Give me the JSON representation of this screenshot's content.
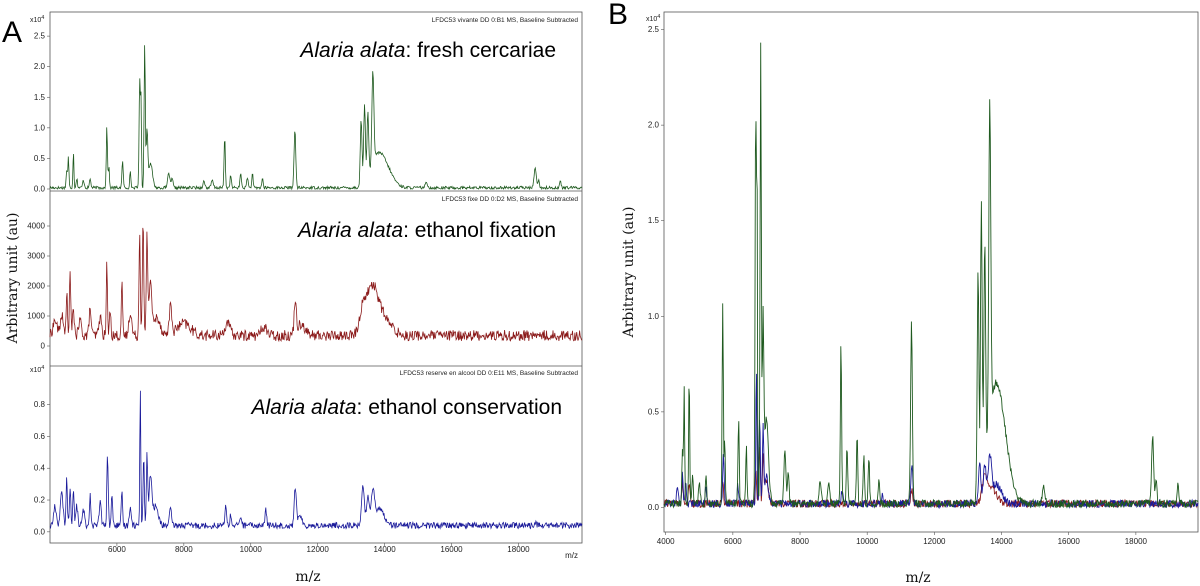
{
  "figure": {
    "panel_a_letter": "A",
    "panel_b_letter": "B"
  },
  "chart_data": [
    {
      "type": "line",
      "panel": "A",
      "subplot": 1,
      "header": "LFDC53 vivante DD 0:B1 MS, Baseline Subtracted",
      "annotation_species": "Alaria alata",
      "annotation_rest": ": fresh cercariae",
      "color": "#1f5a1f",
      "exponent_label": "x10",
      "exponent_power": "4",
      "xlim": [
        4000,
        19900
      ],
      "ylim": [
        0,
        2.6
      ],
      "yticks": [
        "0.0",
        "0.5",
        "1.0",
        "1.5",
        "2.0",
        "2.5"
      ],
      "ytick_values": [
        0,
        0.5,
        1.0,
        1.5,
        2.0,
        2.5
      ],
      "noise": 0.025,
      "baseline": 0.02,
      "peaks": [
        [
          4500,
          0.3,
          18
        ],
        [
          4550,
          0.5,
          15
        ],
        [
          4700,
          0.6,
          15
        ],
        [
          4800,
          0.15,
          20
        ],
        [
          5000,
          0.12,
          25
        ],
        [
          5200,
          0.15,
          20
        ],
        [
          5700,
          1.0,
          18
        ],
        [
          5760,
          0.35,
          15
        ],
        [
          6170,
          0.45,
          18
        ],
        [
          6400,
          0.25,
          18
        ],
        [
          6680,
          1.8,
          18
        ],
        [
          6720,
          1.45,
          14
        ],
        [
          6830,
          2.35,
          18
        ],
        [
          6900,
          0.9,
          22
        ],
        [
          7000,
          0.4,
          60
        ],
        [
          7550,
          0.25,
          30
        ],
        [
          7650,
          0.15,
          25
        ],
        [
          8600,
          0.1,
          30
        ],
        [
          8850,
          0.12,
          30
        ],
        [
          9220,
          0.85,
          18
        ],
        [
          9400,
          0.2,
          20
        ],
        [
          9700,
          0.25,
          20
        ],
        [
          9900,
          0.18,
          20
        ],
        [
          10050,
          0.22,
          20
        ],
        [
          10350,
          0.15,
          20
        ],
        [
          11320,
          0.95,
          25
        ],
        [
          13300,
          1.1,
          25
        ],
        [
          13400,
          1.3,
          25
        ],
        [
          13500,
          1.1,
          25
        ],
        [
          13650,
          1.55,
          30
        ],
        [
          13800,
          0.5,
          200
        ],
        [
          14100,
          0.2,
          200
        ],
        [
          15250,
          0.07,
          40
        ],
        [
          18500,
          0.35,
          30
        ],
        [
          18600,
          0.12,
          25
        ],
        [
          19250,
          0.12,
          20
        ]
      ]
    },
    {
      "type": "line",
      "panel": "A",
      "subplot": 2,
      "header": "LFDC53 fixe DD 0:D2 MS, Baseline Subtracted",
      "annotation_species": "Alaria alata",
      "annotation_rest": ": ethanol fixation",
      "color": "#8b1a1a",
      "exponent_label": "",
      "exponent_power": "",
      "xlim": [
        4000,
        19900
      ],
      "ylim": [
        -200,
        4700
      ],
      "yticks": [
        "0",
        "1000",
        "2000",
        "3000",
        "4000"
      ],
      "ytick_values": [
        0,
        1000,
        2000,
        3000,
        4000
      ],
      "noise": 180,
      "baseline": 350,
      "peaks": [
        [
          4150,
          500,
          60
        ],
        [
          4350,
          700,
          40
        ],
        [
          4500,
          1500,
          20
        ],
        [
          4600,
          2000,
          20
        ],
        [
          4700,
          800,
          30
        ],
        [
          4900,
          500,
          40
        ],
        [
          5200,
          900,
          30
        ],
        [
          5500,
          600,
          40
        ],
        [
          5700,
          2400,
          18
        ],
        [
          5800,
          900,
          20
        ],
        [
          6150,
          1700,
          18
        ],
        [
          6400,
          800,
          40
        ],
        [
          6680,
          3500,
          20
        ],
        [
          6780,
          3900,
          20
        ],
        [
          6900,
          3300,
          22
        ],
        [
          7000,
          1800,
          40
        ],
        [
          7200,
          600,
          100
        ],
        [
          7600,
          900,
          40
        ],
        [
          8000,
          400,
          200
        ],
        [
          9300,
          400,
          80
        ],
        [
          10400,
          300,
          80
        ],
        [
          11330,
          1100,
          30
        ],
        [
          11500,
          400,
          120
        ],
        [
          13350,
          800,
          100
        ],
        [
          13600,
          1250,
          150
        ],
        [
          13800,
          700,
          180
        ],
        [
          14100,
          300,
          200
        ]
      ]
    },
    {
      "type": "line",
      "panel": "A",
      "subplot": 3,
      "header": "LFDC53 reserve en alcool DD 0:E11 MS, Baseline Subtracted",
      "annotation_species": "Alaria alata",
      "annotation_rest": ": ethanol conservation",
      "color": "#1a1a9a",
      "exponent_label": "x10",
      "exponent_power": "4",
      "xlim": [
        4000,
        19900
      ],
      "ylim": [
        -0.02,
        0.98
      ],
      "yticks": [
        "0.0",
        "0.2",
        "0.4",
        "0.6",
        "0.8"
      ],
      "ytick_values": [
        0,
        0.2,
        0.4,
        0.6,
        0.8
      ],
      "noise": 0.02,
      "baseline": 0.04,
      "peaks": [
        [
          4150,
          0.12,
          40
        ],
        [
          4350,
          0.2,
          40
        ],
        [
          4500,
          0.3,
          20
        ],
        [
          4600,
          0.25,
          20
        ],
        [
          4700,
          0.22,
          20
        ],
        [
          4800,
          0.12,
          30
        ],
        [
          5000,
          0.1,
          30
        ],
        [
          5200,
          0.2,
          20
        ],
        [
          5500,
          0.15,
          30
        ],
        [
          5720,
          0.45,
          20
        ],
        [
          5850,
          0.2,
          20
        ],
        [
          6150,
          0.2,
          20
        ],
        [
          6400,
          0.12,
          30
        ],
        [
          6700,
          0.88,
          15
        ],
        [
          6800,
          0.45,
          18
        ],
        [
          6900,
          0.45,
          20
        ],
        [
          7000,
          0.3,
          40
        ],
        [
          7150,
          0.12,
          80
        ],
        [
          7600,
          0.1,
          30
        ],
        [
          9250,
          0.12,
          25
        ],
        [
          9400,
          0.06,
          25
        ],
        [
          9700,
          0.06,
          25
        ],
        [
          10450,
          0.1,
          25
        ],
        [
          11330,
          0.22,
          30
        ],
        [
          11450,
          0.05,
          80
        ],
        [
          13350,
          0.25,
          40
        ],
        [
          13500,
          0.18,
          40
        ],
        [
          13650,
          0.2,
          50
        ],
        [
          13850,
          0.1,
          150
        ],
        [
          18500,
          0.015,
          40
        ]
      ]
    },
    {
      "type": "line",
      "panel": "B",
      "xlabel": "m/z",
      "ylabel": "Arbitrary unit (au)",
      "exponent_label": "x10",
      "exponent_power": "4",
      "xlim": [
        3950,
        19850
      ],
      "ylim": [
        -0.05,
        2.55
      ],
      "xticks": [
        "4000",
        "6000",
        "8000",
        "10000",
        "12000",
        "14000",
        "16000",
        "18000"
      ],
      "xtick_values": [
        4000,
        6000,
        8000,
        10000,
        12000,
        14000,
        16000,
        18000
      ],
      "yticks": [
        "0.0",
        "0.5",
        "1.0",
        "1.5",
        "2.0",
        "2.5"
      ],
      "ytick_values": [
        0,
        0.5,
        1.0,
        1.5,
        2.0,
        2.5
      ],
      "series": [
        {
          "color": "#8b1a1a",
          "noise": 0.02,
          "baseline": 0.02,
          "peaks": [
            [
              4500,
              0.12,
              20
            ],
            [
              4700,
              0.12,
              20
            ],
            [
              5700,
              0.12,
              20
            ],
            [
              6680,
              0.2,
              20
            ],
            [
              6800,
              0.3,
              20
            ],
            [
              6900,
              0.25,
              20
            ],
            [
              7000,
              0.12,
              60
            ],
            [
              11330,
              0.08,
              30
            ],
            [
              13500,
              0.12,
              80
            ],
            [
              13700,
              0.08,
              150
            ]
          ]
        },
        {
          "color": "#1a1a9a",
          "noise": 0.02,
          "baseline": 0.02,
          "peaks": [
            [
              4350,
              0.08,
              30
            ],
            [
              4500,
              0.15,
              20
            ],
            [
              4600,
              0.12,
              20
            ],
            [
              5200,
              0.1,
              20
            ],
            [
              5720,
              0.25,
              20
            ],
            [
              6150,
              0.1,
              20
            ],
            [
              6700,
              0.75,
              15
            ],
            [
              6800,
              0.45,
              18
            ],
            [
              6900,
              0.4,
              20
            ],
            [
              7000,
              0.15,
              50
            ],
            [
              9250,
              0.06,
              25
            ],
            [
              10450,
              0.05,
              25
            ],
            [
              11330,
              0.2,
              30
            ],
            [
              13350,
              0.2,
              40
            ],
            [
              13500,
              0.2,
              40
            ],
            [
              13650,
              0.22,
              50
            ],
            [
              13850,
              0.1,
              150
            ]
          ]
        },
        {
          "color": "#1f5a1f",
          "noise": 0.02,
          "baseline": 0.02,
          "peaks": [
            [
              4500,
              0.3,
              18
            ],
            [
              4550,
              0.6,
              15
            ],
            [
              4700,
              0.7,
              15
            ],
            [
              4800,
              0.15,
              20
            ],
            [
              5000,
              0.12,
              25
            ],
            [
              5200,
              0.15,
              20
            ],
            [
              5700,
              1.05,
              18
            ],
            [
              5760,
              0.35,
              15
            ],
            [
              6170,
              0.45,
              18
            ],
            [
              6400,
              0.3,
              18
            ],
            [
              6680,
              2.1,
              18
            ],
            [
              6720,
              1.6,
              14
            ],
            [
              6830,
              2.4,
              18
            ],
            [
              6900,
              0.9,
              22
            ],
            [
              7000,
              0.45,
              60
            ],
            [
              7550,
              0.3,
              30
            ],
            [
              7650,
              0.15,
              25
            ],
            [
              8600,
              0.12,
              30
            ],
            [
              8850,
              0.12,
              30
            ],
            [
              9220,
              0.85,
              18
            ],
            [
              9400,
              0.3,
              20
            ],
            [
              9700,
              0.35,
              20
            ],
            [
              9900,
              0.25,
              20
            ],
            [
              10050,
              0.25,
              20
            ],
            [
              10350,
              0.15,
              20
            ],
            [
              11320,
              0.95,
              25
            ],
            [
              13300,
              1.2,
              25
            ],
            [
              13400,
              1.5,
              25
            ],
            [
              13500,
              1.2,
              25
            ],
            [
              13650,
              1.68,
              30
            ],
            [
              13800,
              0.55,
              200
            ],
            [
              14100,
              0.22,
              200
            ],
            [
              15250,
              0.08,
              40
            ],
            [
              18500,
              0.35,
              30
            ],
            [
              18600,
              0.12,
              25
            ],
            [
              19250,
              0.12,
              20
            ]
          ]
        }
      ]
    }
  ],
  "panel_a_labels": {
    "ylabel": "Arbitrary unit (au)",
    "xlabel": "m/z",
    "small_axis_unit": "m/z",
    "xticks": [
      "6000",
      "8000",
      "10000",
      "12000",
      "14000",
      "16000",
      "18000"
    ],
    "xtick_values": [
      6000,
      8000,
      10000,
      12000,
      14000,
      16000,
      18000
    ]
  }
}
